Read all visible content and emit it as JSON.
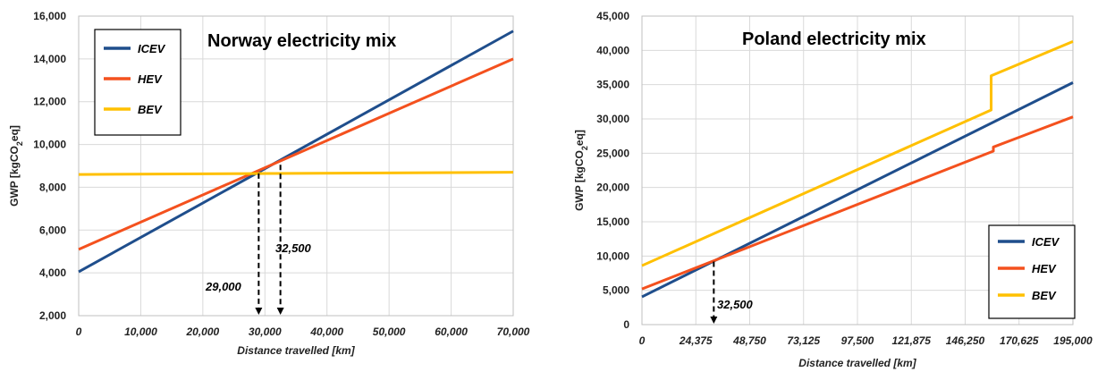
{
  "chart_data": [
    {
      "type": "line",
      "title": "Norway electricity mix",
      "xlabel": "Distance travelled [km]",
      "ylabel": "GWP [kgCO",
      "ylabel_sub": "2",
      "ylabel_tail": "eq]",
      "xlim": [
        0,
        70000
      ],
      "ylim": [
        2000,
        16000
      ],
      "x_ticks": [
        0,
        10000,
        20000,
        30000,
        40000,
        50000,
        60000,
        70000
      ],
      "x_tick_labels": [
        "0",
        "10,000",
        "20,000",
        "30,000",
        "40,000",
        "50,000",
        "60,000",
        "70,000"
      ],
      "y_ticks": [
        2000,
        4000,
        6000,
        8000,
        10000,
        12000,
        14000,
        16000
      ],
      "y_tick_labels": [
        "2,000",
        "4,000",
        "6,000",
        "8,000",
        "10,000",
        "12,000",
        "14,000",
        "16,000"
      ],
      "grid": true,
      "legend": "top-left",
      "series": [
        {
          "name": "ICEV",
          "color": "#1f4e8c",
          "x": [
            0,
            70000
          ],
          "y": [
            4050,
            15300
          ]
        },
        {
          "name": "HEV",
          "color": "#f4511e",
          "x": [
            0,
            70000
          ],
          "y": [
            5100,
            14000
          ]
        },
        {
          "name": "BEV",
          "color": "#ffc000",
          "x": [
            0,
            70000
          ],
          "y": [
            8600,
            8700
          ]
        }
      ],
      "annotations": [
        {
          "text": "29,000",
          "x": 29000,
          "y": 8650
        },
        {
          "text": "32,500",
          "x": 32500,
          "y": 9050
        }
      ]
    },
    {
      "type": "line",
      "title": "Poland electricity mix",
      "xlabel": "Distance travelled [km]",
      "ylabel": "GWP [kgCO",
      "ylabel_sub": "2",
      "ylabel_tail": "eq]",
      "xlim": [
        0,
        195000
      ],
      "ylim": [
        0,
        45000
      ],
      "x_ticks": [
        0,
        24375,
        48750,
        73125,
        97500,
        121875,
        146250,
        170625,
        195000
      ],
      "x_tick_labels": [
        "0",
        "24,375",
        "48,750",
        "73,125",
        "97,500",
        "121,875",
        "146,250",
        "170,625",
        "195,000"
      ],
      "y_ticks": [
        0,
        5000,
        10000,
        15000,
        20000,
        25000,
        30000,
        35000,
        40000,
        45000
      ],
      "y_tick_labels": [
        "0",
        "5,000",
        "10,000",
        "15,000",
        "20,000",
        "25,000",
        "30,000",
        "35,000",
        "40,000",
        "45,000"
      ],
      "grid": true,
      "legend": "bottom-right",
      "series": [
        {
          "name": "ICEV",
          "color": "#1f4e8c",
          "x": [
            0,
            195000
          ],
          "y": [
            4050,
            35300
          ]
        },
        {
          "name": "HEV",
          "color": "#f4511e",
          "x": [
            0,
            159000,
            159000,
            195000
          ],
          "y": [
            5200,
            25300,
            25900,
            30300
          ]
        },
        {
          "name": "BEV",
          "color": "#ffc000",
          "x": [
            0,
            158000,
            158000,
            195000
          ],
          "y": [
            8600,
            31300,
            36300,
            41300
          ]
        }
      ],
      "annotations": [
        {
          "text": "32,500",
          "x": 32500,
          "y": 9200
        }
      ]
    }
  ]
}
